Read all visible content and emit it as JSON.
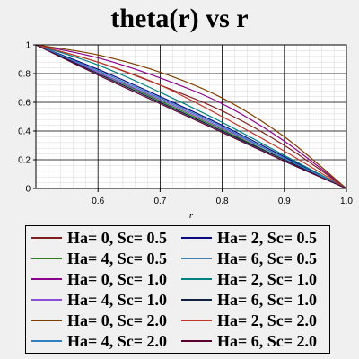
{
  "chart_data": {
    "type": "line",
    "title": "theta(r) vs r",
    "xlabel": "r",
    "ylabel": "",
    "xlim": [
      0.5,
      1.0
    ],
    "ylim": [
      0,
      1
    ],
    "x_ticks": [
      "0.6",
      "0.7",
      "0.8",
      "0.9",
      "1.0"
    ],
    "y_ticks": [
      "0",
      "0.2",
      "0.4",
      "0.6",
      "0.8",
      "1"
    ],
    "grid": true,
    "legend_position": "bottom",
    "series": [
      {
        "name": "Ha= 0, Sc= 0.5",
        "color": "#7f1f1f",
        "x": [
          0.5,
          0.6,
          0.7,
          0.8,
          0.9,
          1.0
        ],
        "values": [
          1.0,
          0.88,
          0.72,
          0.54,
          0.3,
          0.0
        ]
      },
      {
        "name": "Ha= 2, Sc= 0.5",
        "color": "#0a0a7f",
        "x": [
          0.5,
          0.6,
          0.7,
          0.8,
          0.9,
          1.0
        ],
        "values": [
          1.0,
          0.83,
          0.64,
          0.44,
          0.22,
          0.0
        ]
      },
      {
        "name": "Ha= 4, Sc= 0.5",
        "color": "#2e7d1e",
        "x": [
          0.5,
          0.6,
          0.7,
          0.8,
          0.9,
          1.0
        ],
        "values": [
          1.0,
          0.81,
          0.61,
          0.41,
          0.2,
          0.0
        ]
      },
      {
        "name": "Ha= 6, Sc= 0.5",
        "color": "#4682b4",
        "x": [
          0.5,
          0.6,
          0.7,
          0.8,
          0.9,
          1.0
        ],
        "values": [
          1.0,
          0.8,
          0.6,
          0.4,
          0.19,
          0.0
        ]
      },
      {
        "name": "Ha= 0, Sc= 1.0",
        "color": "#8b008b",
        "x": [
          0.5,
          0.6,
          0.7,
          0.8,
          0.9,
          1.0
        ],
        "values": [
          1.0,
          0.91,
          0.77,
          0.59,
          0.33,
          0.0
        ]
      },
      {
        "name": "Ha= 2, Sc= 1.0",
        "color": "#008080",
        "x": [
          0.5,
          0.6,
          0.7,
          0.8,
          0.9,
          1.0
        ],
        "values": [
          1.0,
          0.86,
          0.67,
          0.46,
          0.23,
          0.0
        ]
      },
      {
        "name": "Ha= 4, Sc= 1.0",
        "color": "#8a4fd8",
        "x": [
          0.5,
          0.6,
          0.7,
          0.8,
          0.9,
          1.0
        ],
        "values": [
          1.0,
          0.81,
          0.62,
          0.42,
          0.21,
          0.0
        ]
      },
      {
        "name": "Ha= 6, Sc= 1.0",
        "color": "#102040",
        "x": [
          0.5,
          0.6,
          0.7,
          0.8,
          0.9,
          1.0
        ],
        "values": [
          1.0,
          0.8,
          0.6,
          0.4,
          0.2,
          0.0
        ]
      },
      {
        "name": "Ha= 0, Sc= 2.0",
        "color": "#7f3f00",
        "x": [
          0.5,
          0.6,
          0.7,
          0.8,
          0.9,
          1.0
        ],
        "values": [
          1.0,
          0.93,
          0.81,
          0.63,
          0.36,
          0.0
        ]
      },
      {
        "name": "Ha= 2, Sc= 2.0",
        "color": "#c0392b",
        "x": [
          0.5,
          0.6,
          0.7,
          0.8,
          0.9,
          1.0
        ],
        "values": [
          1.0,
          0.88,
          0.72,
          0.5,
          0.26,
          0.0
        ]
      },
      {
        "name": "Ha= 4, Sc= 2.0",
        "color": "#2f7fc1",
        "x": [
          0.5,
          0.6,
          0.7,
          0.8,
          0.9,
          1.0
        ],
        "values": [
          1.0,
          0.82,
          0.63,
          0.43,
          0.21,
          0.0
        ]
      },
      {
        "name": "Ha= 6, Sc= 2.0",
        "color": "#5a0030",
        "x": [
          0.5,
          0.6,
          0.7,
          0.8,
          0.9,
          1.0
        ],
        "values": [
          1.0,
          0.79,
          0.59,
          0.39,
          0.19,
          0.0
        ]
      }
    ]
  }
}
